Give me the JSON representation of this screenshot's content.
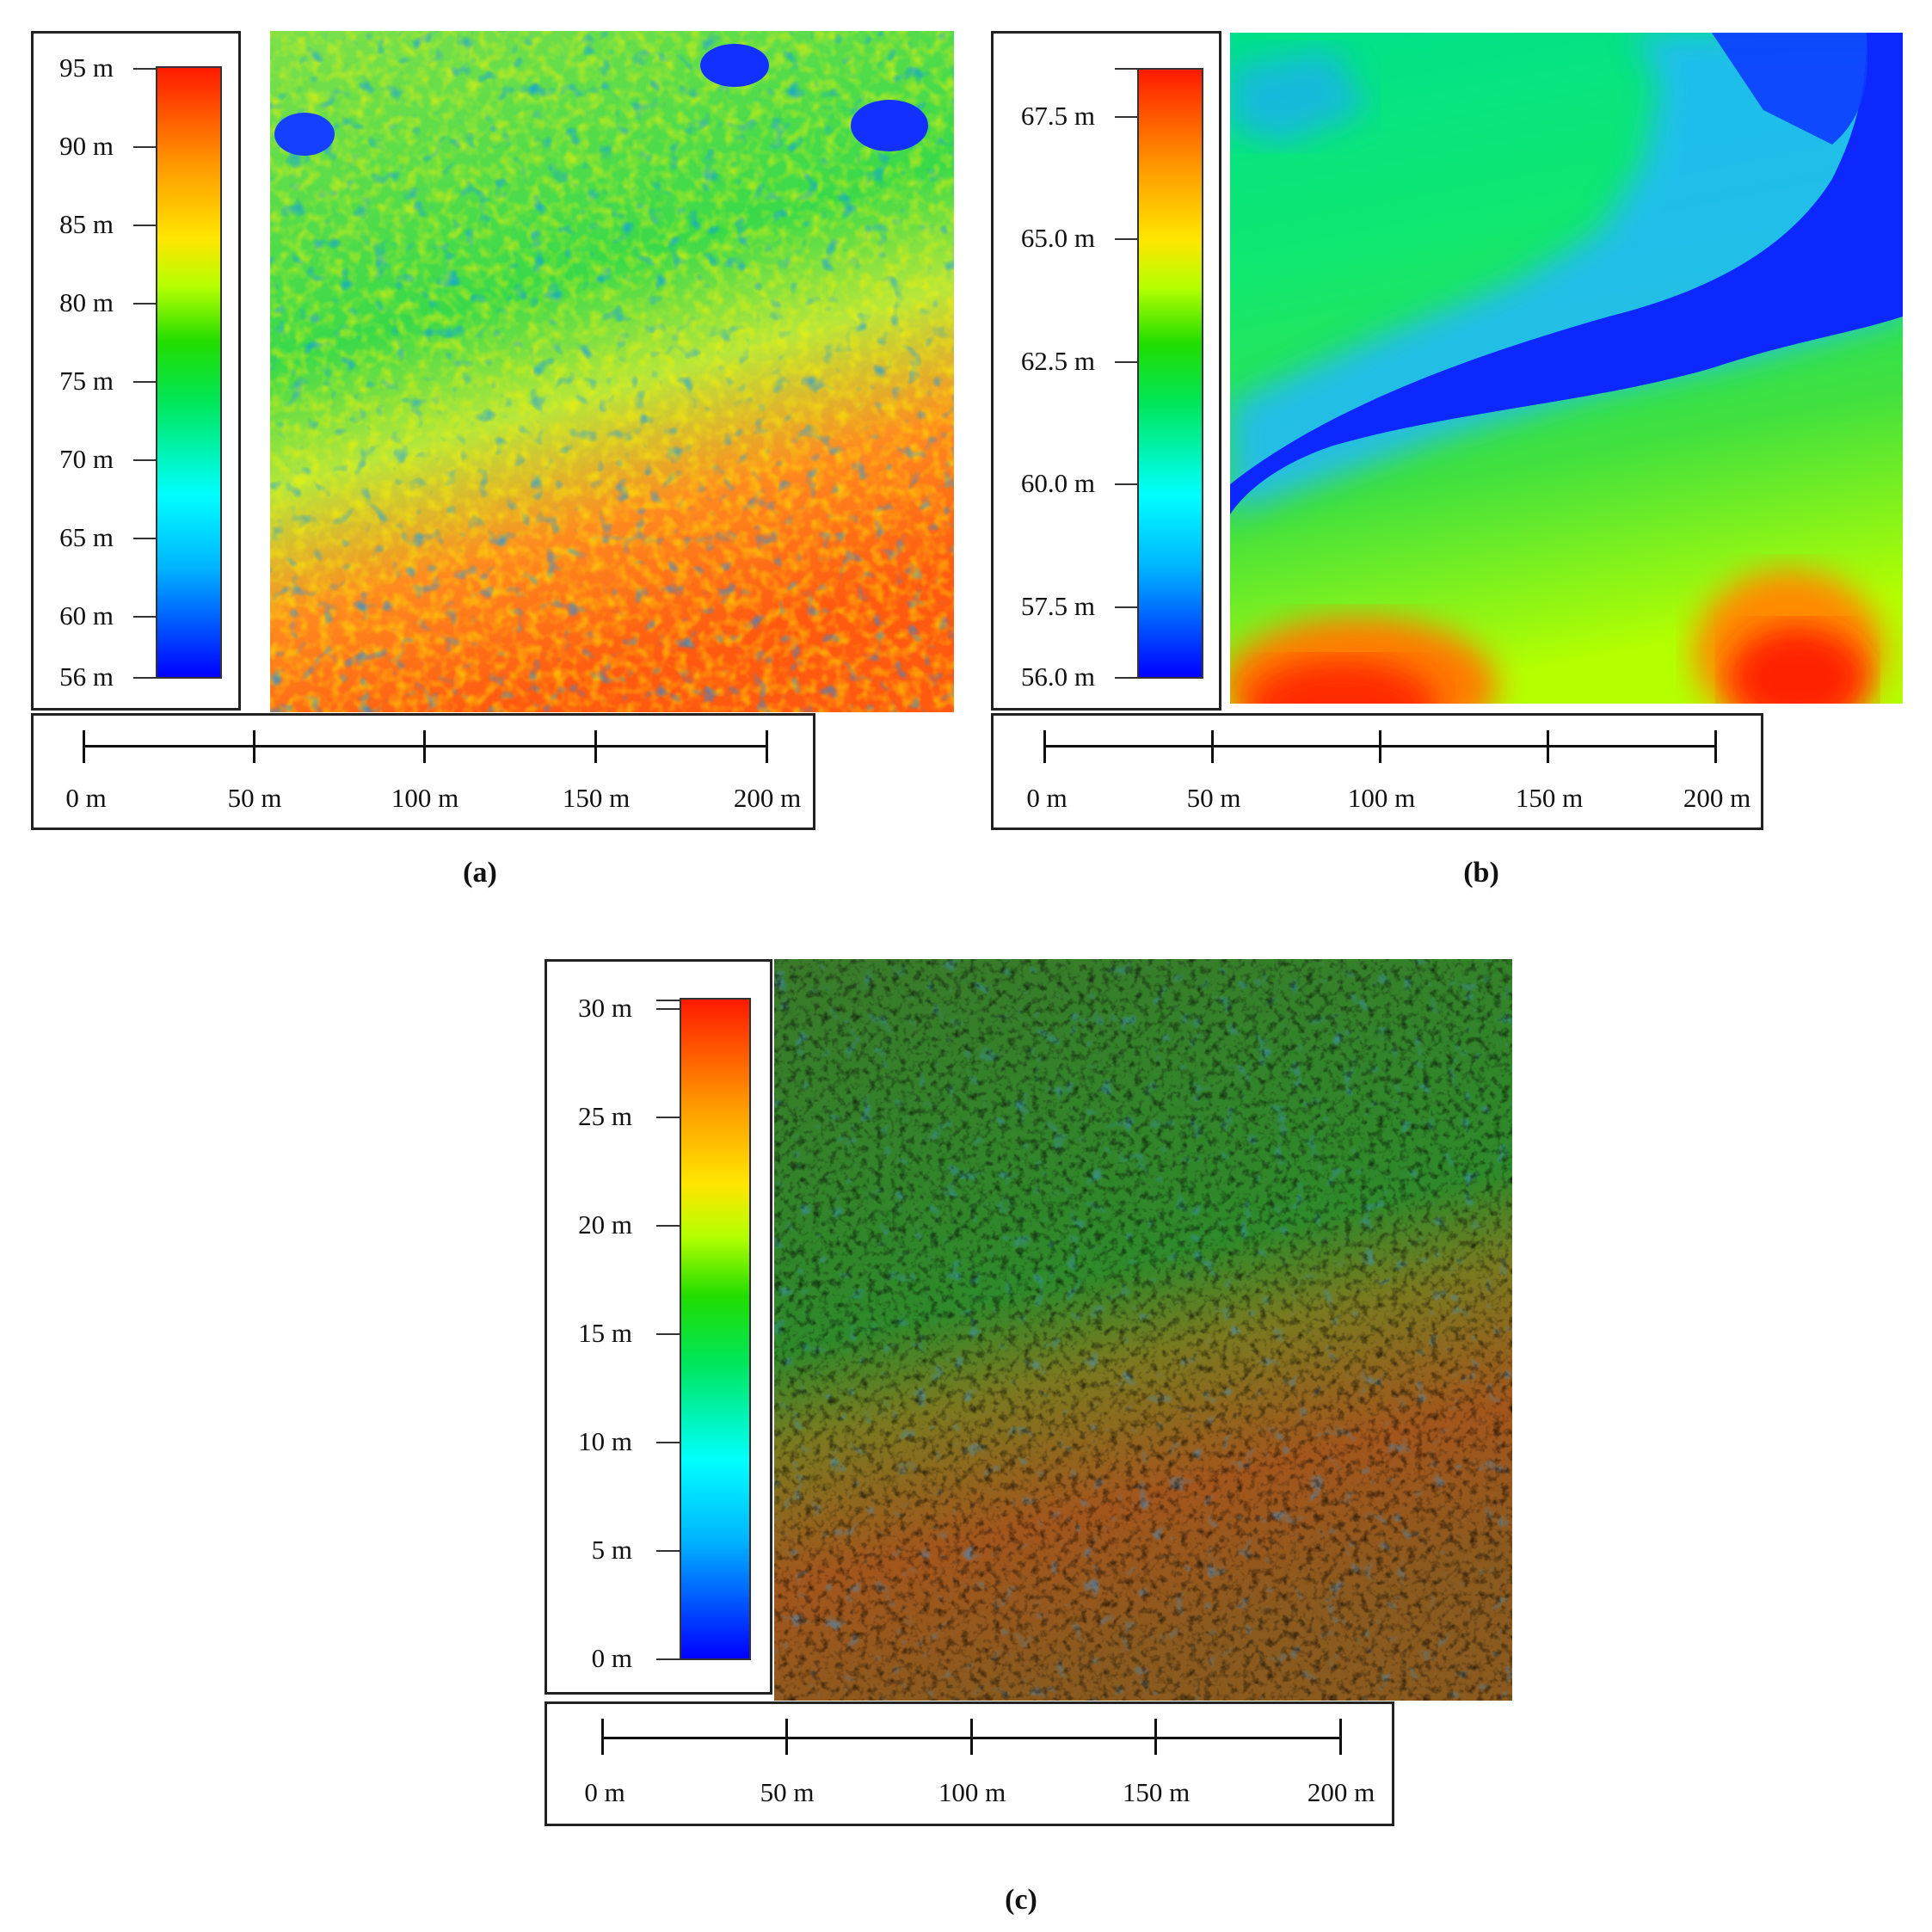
{
  "panels": [
    {
      "id": "a",
      "label": "(a)",
      "colorbar_labels": [
        "95 m",
        "90 m",
        "85 m",
        "80 m",
        "75 m",
        "70 m",
        "65 m",
        "60 m",
        "56 m"
      ],
      "scale_labels": [
        "0 m",
        "50 m",
        "100 m",
        "150 m",
        "200 m"
      ]
    },
    {
      "id": "b",
      "label": "(b)",
      "colorbar_labels": [
        "67.5 m",
        "65.0 m",
        "62.5 m",
        "60.0 m",
        "57.5 m",
        "56.0 m"
      ],
      "scale_labels": [
        "0 m",
        "50 m",
        "100 m",
        "150 m",
        "200 m"
      ]
    },
    {
      "id": "c",
      "label": "(c)",
      "colorbar_labels": [
        "30 m",
        "25 m",
        "20 m",
        "15 m",
        "10 m",
        "5 m",
        "0 m"
      ],
      "scale_labels": [
        "0 m",
        "50 m",
        "100 m",
        "150 m",
        "200 m"
      ]
    }
  ]
}
